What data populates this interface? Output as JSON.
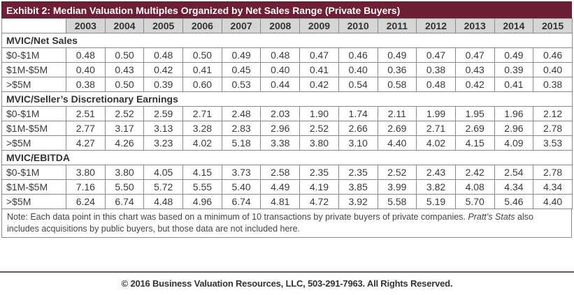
{
  "title": "Exhibit 2: Median Valuation Multiples Organized by Net Sales Range (Private Buyers)",
  "years": [
    "2003",
    "2004",
    "2005",
    "2006",
    "2007",
    "2008",
    "2009",
    "2010",
    "2011",
    "2012",
    "2013",
    "2014",
    "2015"
  ],
  "sections": [
    {
      "label": "MVIC/Net Sales",
      "rows": [
        {
          "label": "$0-$1M",
          "values": [
            "0.48",
            "0.50",
            "0.48",
            "0.50",
            "0.49",
            "0.48",
            "0.47",
            "0.46",
            "0.49",
            "0.47",
            "0.47",
            "0.49",
            "0.46"
          ]
        },
        {
          "label": "$1M-$5M",
          "values": [
            "0.40",
            "0.43",
            "0.42",
            "0.41",
            "0.45",
            "0.40",
            "0.41",
            "0.40",
            "0.36",
            "0.38",
            "0.43",
            "0.39",
            "0.40"
          ]
        },
        {
          "label": ">$5M",
          "values": [
            "0.38",
            "0.50",
            "0.39",
            "0.60",
            "0.53",
            "0.44",
            "0.42",
            "0.54",
            "0.58",
            "0.48",
            "0.42",
            "0.41",
            "0.38"
          ]
        }
      ]
    },
    {
      "label": "MVIC/Seller’s Discretionary Earnings",
      "rows": [
        {
          "label": "$0-$1M",
          "values": [
            "2.51",
            "2.52",
            "2.59",
            "2.71",
            "2.48",
            "2.03",
            "1.90",
            "1.74",
            "2.11",
            "1.99",
            "1.95",
            "1.96",
            "2.12"
          ]
        },
        {
          "label": "$1M-$5M",
          "values": [
            "2.77",
            "3.17",
            "3.13",
            "3.28",
            "2.83",
            "2.96",
            "2.52",
            "2.66",
            "2.69",
            "2.71",
            "2.69",
            "2.96",
            "2.78"
          ]
        },
        {
          "label": ">$5M",
          "values": [
            "4.27",
            "4.26",
            "3.23",
            "4.02",
            "5.18",
            "3.38",
            "3.80",
            "3.10",
            "4.40",
            "4.02",
            "4.15",
            "4.09",
            "3.53"
          ]
        }
      ]
    },
    {
      "label": "MVIC/EBITDA",
      "rows": [
        {
          "label": "$0-$1M",
          "values": [
            "3.80",
            "3.80",
            "4.05",
            "4.15",
            "3.73",
            "2.58",
            "2.35",
            "2.35",
            "2.52",
            "2.43",
            "2.42",
            "2.54",
            "2.78"
          ]
        },
        {
          "label": "$1M-$5M",
          "values": [
            "7.16",
            "5.50",
            "5.72",
            "5.55",
            "5.40",
            "4.49",
            "4.19",
            "3.85",
            "3.99",
            "3.82",
            "4.08",
            "4.34",
            "4.34"
          ]
        },
        {
          "label": ">$5M",
          "values": [
            "6.24",
            "6.74",
            "4.48",
            "4.96",
            "6.74",
            "4.81",
            "4.72",
            "3.92",
            "5.58",
            "5.19",
            "5.70",
            "5.46",
            "4.40"
          ]
        }
      ]
    }
  ],
  "note": {
    "text1": "Note: Each data point in this chart was based on a minimum of 10 transactions by private buyers of private companies. ",
    "italic": "Pratt’s Stats",
    "text2": " also includes acquisitions by public buyers, but those data are not included here."
  },
  "footer": "© 2016 Business Valuation Resources, LLC, 503-291-7963. All Rights Reserved.",
  "colors": {
    "title_bg": "#6e1f35",
    "header_bg": "#d5d5d5"
  }
}
